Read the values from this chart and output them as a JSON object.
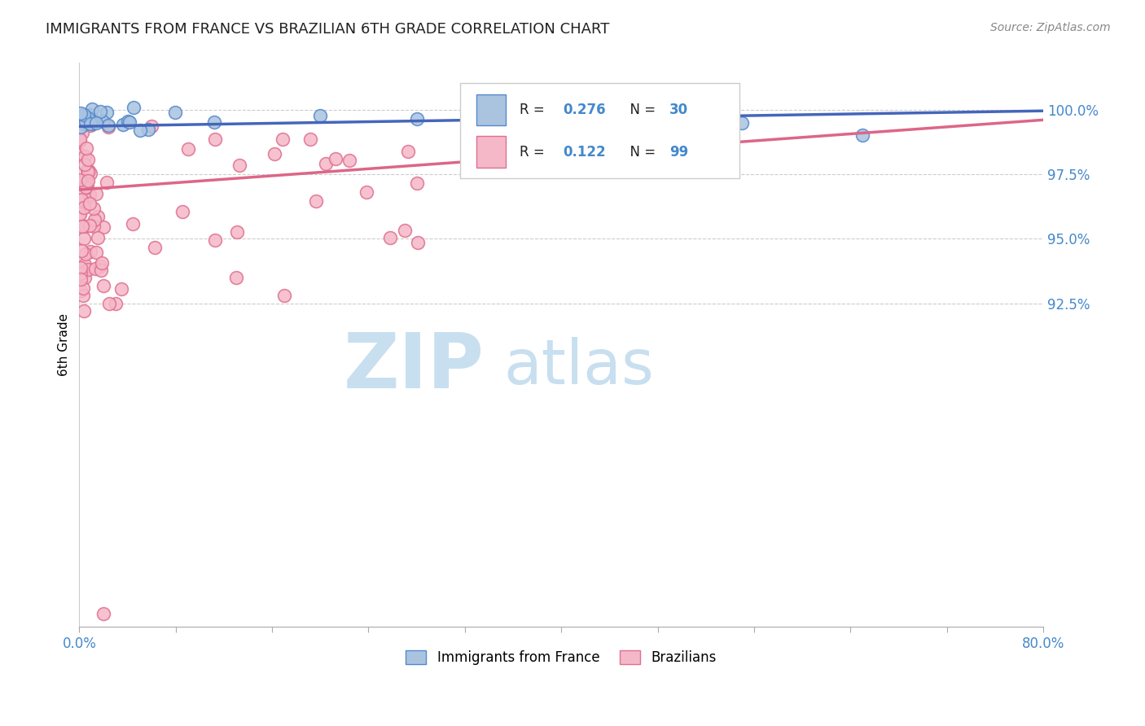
{
  "title": "IMMIGRANTS FROM FRANCE VS BRAZILIAN 6TH GRADE CORRELATION CHART",
  "source": "Source: ZipAtlas.com",
  "ylabel_text": "6th Grade",
  "legend_label1": "Immigrants from France",
  "legend_label2": "Brazilians",
  "blue_R": "0.276",
  "blue_N": "30",
  "pink_R": "0.122",
  "pink_N": "99",
  "blue_color": "#aac4e0",
  "blue_edge": "#5588cc",
  "pink_color": "#f5b8c8",
  "pink_edge": "#e07090",
  "trendline_blue": "#4466bb",
  "trendline_pink": "#dd6688",
  "background_color": "#ffffff",
  "grid_color": "#cccccc",
  "axis_label_color": "#4488cc",
  "xlim": [
    0.0,
    80.0
  ],
  "ylim": [
    80.0,
    101.8
  ],
  "yticks": [
    92.5,
    95.0,
    97.5,
    100.0
  ],
  "ytick_labels": [
    "92.5%",
    "95.0%",
    "97.5%",
    "100.0%"
  ],
  "xtick_positions": [
    0,
    8,
    16,
    24,
    32,
    40,
    48,
    56,
    64,
    72,
    80
  ],
  "blue_trend_x0": 0.0,
  "blue_trend_y0": 99.35,
  "blue_trend_x1": 80.0,
  "blue_trend_y1": 99.95,
  "pink_trend_x0": 0.0,
  "pink_trend_y0": 96.9,
  "pink_trend_x1": 80.0,
  "pink_trend_y1": 99.6,
  "watermark_zip_color": "#c8dff0",
  "watermark_atlas_color": "#c8dff0",
  "marker_size": 130
}
